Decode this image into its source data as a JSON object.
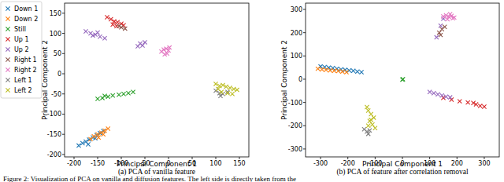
{
  "chart_data": [
    {
      "type": "scatter",
      "title": "(a) PCA of vanilla feature",
      "x_label": "Principal Component 1",
      "y_label": "Principal Component 2",
      "xlim": [
        -220,
        170
      ],
      "ylim": [
        -206,
        175
      ],
      "xticks": [
        -200,
        -150,
        -100,
        -50,
        0,
        50,
        100,
        150
      ],
      "yticks": [
        -200,
        -150,
        -100,
        -50,
        0,
        50,
        100,
        150
      ],
      "legend": "left",
      "marker": "x",
      "series": [
        {
          "name": "Down 1",
          "color": "#1f77b4",
          "x": [
            -190,
            -182,
            -175,
            -168,
            -160,
            -152,
            -145,
            -138,
            -170,
            -155
          ],
          "values": [
            -178,
            -172,
            -168,
            -163,
            -158,
            -152,
            -147,
            -142,
            -175,
            -160
          ]
        },
        {
          "name": "Down 2",
          "color": "#ff7f0e",
          "x": [
            -165,
            -158,
            -150,
            -142,
            -135,
            -128,
            -148,
            -138
          ],
          "values": [
            -162,
            -155,
            -150,
            -146,
            -141,
            -136,
            -158,
            -150
          ]
        },
        {
          "name": "Still",
          "color": "#2ca02c",
          "x": [
            -150,
            -140,
            -128,
            -118,
            -105,
            -95,
            -85,
            -75,
            -135
          ],
          "values": [
            -62,
            -60,
            -57,
            -54,
            -52,
            -50,
            -48,
            -45,
            -55
          ]
        },
        {
          "name": "Up 1",
          "color": "#d62728",
          "x": [
            -130,
            -122,
            -115,
            -108,
            -100,
            -118,
            -110,
            -95
          ],
          "values": [
            140,
            135,
            130,
            128,
            124,
            122,
            118,
            120
          ]
        },
        {
          "name": "Up 2",
          "color": "#9467bd",
          "x": [
            -175,
            -165,
            -155,
            -145,
            -135,
            -160,
            -150,
            -60,
            -55,
            -65,
            -50
          ],
          "values": [
            105,
            100,
            97,
            92,
            88,
            95,
            102,
            75,
            70,
            68,
            78
          ]
        },
        {
          "name": "Right 1",
          "color": "#8c564b",
          "x": [
            -105,
            -100,
            -92
          ],
          "values": [
            118,
            115,
            112
          ]
        },
        {
          "name": "Right 2",
          "color": "#e377c2",
          "x": [
            -15,
            -10,
            -5,
            0,
            -8,
            -3,
            2
          ],
          "values": [
            55,
            60,
            62,
            58,
            48,
            50,
            65
          ]
        },
        {
          "name": "Left 1",
          "color": "#7f7f7f",
          "x": [
            100,
            108,
            115,
            125,
            110
          ],
          "values": [
            -42,
            -48,
            -50,
            -45,
            -55
          ]
        },
        {
          "name": "Left 2",
          "color": "#bcbd22",
          "x": [
            100,
            108,
            115,
            122,
            130,
            138,
            145,
            112,
            125,
            135,
            105
          ],
          "values": [
            -25,
            -30,
            -28,
            -32,
            -35,
            -38,
            -40,
            -45,
            -48,
            -50,
            -38
          ]
        }
      ]
    },
    {
      "type": "scatter",
      "title": "(b) PCA of feature after correlation removal",
      "x_label": "Principal Component 1",
      "y_label": "Principal Component 2",
      "xlim": [
        -355,
        355
      ],
      "ylim": [
        -334,
        327
      ],
      "xticks": [
        -300,
        -200,
        -100,
        0,
        100,
        200,
        300
      ],
      "yticks": [
        -300,
        -200,
        -100,
        0,
        100,
        200,
        300
      ],
      "marker": "x",
      "series": [
        {
          "name": "Down 1",
          "color": "#1f77b4",
          "x": [
            -300,
            -285,
            -270,
            -255,
            -240,
            -225,
            -210,
            -195,
            -180,
            -165,
            -150
          ],
          "values": [
            55,
            52,
            50,
            48,
            45,
            42,
            40,
            38,
            36,
            33,
            30
          ]
        },
        {
          "name": "Down 2",
          "color": "#ff7f0e",
          "x": [
            -310,
            -295,
            -280,
            -265,
            -250,
            -235,
            -220,
            -205
          ],
          "values": [
            45,
            42,
            40,
            38,
            36,
            35,
            33,
            30
          ]
        },
        {
          "name": "Still",
          "color": "#2ca02c",
          "x": [
            0,
            2
          ],
          "values": [
            -2,
            0
          ]
        },
        {
          "name": "Up 1",
          "color": "#d62728",
          "x": [
            150,
            180,
            210,
            240,
            270,
            300,
            285,
            260
          ],
          "values": [
            -80,
            -88,
            -95,
            -100,
            -108,
            -118,
            -115,
            -102
          ]
        },
        {
          "name": "Up 2",
          "color": "#9467bd",
          "x": [
            100,
            115,
            130,
            145,
            160,
            175,
            140,
            150,
            125
          ],
          "values": [
            -55,
            -60,
            -65,
            -70,
            -75,
            -78,
            230,
            260,
            180
          ]
        },
        {
          "name": "Right 1",
          "color": "#8c564b",
          "x": [
            135,
            145,
            155,
            140
          ],
          "values": [
            200,
            215,
            225,
            190
          ]
        },
        {
          "name": "Right 2",
          "color": "#e377c2",
          "x": [
            150,
            160,
            170,
            180,
            190,
            165,
            175,
            185
          ],
          "values": [
            270,
            275,
            268,
            272,
            265,
            258,
            280,
            262
          ]
        },
        {
          "name": "Left 1",
          "color": "#7f7f7f",
          "x": [
            -140,
            -130,
            -125,
            -120
          ],
          "values": [
            -215,
            -225,
            -235,
            -220
          ]
        },
        {
          "name": "Left 2",
          "color": "#bcbd22",
          "x": [
            -130,
            -125,
            -115,
            -105,
            -120,
            -110,
            -100,
            -125,
            -115
          ],
          "values": [
            -120,
            -135,
            -150,
            -165,
            -180,
            -195,
            -210,
            -200,
            -175
          ]
        }
      ]
    }
  ],
  "caption": "Figure 2: Visualization of PCA on vanilla and diffusion features. The left side is directly taken from the"
}
